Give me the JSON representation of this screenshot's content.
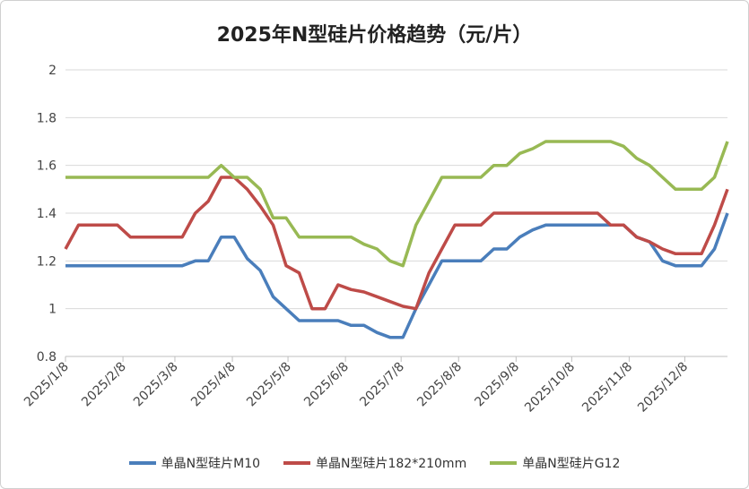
{
  "chart_data": {
    "type": "line",
    "title": "2025年N型硅片价格趋势（元/片）",
    "xlabel": "",
    "ylabel": "",
    "ylim": [
      0.8,
      2
    ],
    "yticks": [
      0.8,
      1,
      1.2,
      1.4,
      1.6,
      1.8,
      2
    ],
    "ytick_labels": [
      "0.8",
      "1",
      "1.2",
      "1.4",
      "1.6",
      "1.8",
      "2"
    ],
    "grid": true,
    "legend_position": "bottom",
    "x_start": "2025/1/8",
    "x_step_days": 7,
    "xlim_days": [
      0,
      357
    ],
    "xticks": [
      {
        "day": 0,
        "label": "2025/1/8"
      },
      {
        "day": 31,
        "label": "2025/2/8"
      },
      {
        "day": 59,
        "label": "2025/3/8"
      },
      {
        "day": 90,
        "label": "2025/4/8"
      },
      {
        "day": 120,
        "label": "2025/5/8"
      },
      {
        "day": 151,
        "label": "2025/6/8"
      },
      {
        "day": 181,
        "label": "2025/7/8"
      },
      {
        "day": 212,
        "label": "2025/8/8"
      },
      {
        "day": 243,
        "label": "2025/9/8"
      },
      {
        "day": 273,
        "label": "2025/10/8"
      },
      {
        "day": 304,
        "label": "2025/11/8"
      },
      {
        "day": 334,
        "label": "2025/12/8"
      }
    ],
    "series": [
      {
        "name": "单晶N型硅片M10",
        "color": "#4a7ebb",
        "values": [
          1.18,
          1.18,
          1.18,
          1.18,
          1.18,
          1.18,
          1.18,
          1.18,
          1.18,
          1.18,
          1.2,
          1.2,
          1.3,
          1.3,
          1.21,
          1.16,
          1.05,
          1.0,
          0.95,
          0.95,
          0.95,
          0.95,
          0.93,
          0.93,
          0.9,
          0.88,
          0.88,
          1.0,
          1.1,
          1.2,
          1.2,
          1.2,
          1.2,
          1.25,
          1.25,
          1.3,
          1.33,
          1.35,
          1.35,
          1.35,
          1.35,
          1.35,
          1.35,
          1.35,
          1.3,
          1.28,
          1.2,
          1.18,
          1.18,
          1.18,
          1.25,
          1.4
        ]
      },
      {
        "name": "单晶N型硅片182*210mm",
        "color": "#be4b48",
        "values": [
          1.25,
          1.35,
          1.35,
          1.35,
          1.35,
          1.3,
          1.3,
          1.3,
          1.3,
          1.3,
          1.4,
          1.45,
          1.55,
          1.55,
          1.5,
          1.43,
          1.35,
          1.18,
          1.15,
          1.0,
          1.0,
          1.1,
          1.08,
          1.07,
          1.05,
          1.03,
          1.01,
          1.0,
          1.15,
          1.25,
          1.35,
          1.35,
          1.35,
          1.4,
          1.4,
          1.4,
          1.4,
          1.4,
          1.4,
          1.4,
          1.4,
          1.4,
          1.35,
          1.35,
          1.3,
          1.28,
          1.25,
          1.23,
          1.23,
          1.23,
          1.35,
          1.5
        ]
      },
      {
        "name": "单晶N型硅片G12",
        "color": "#98b954",
        "values": [
          1.55,
          1.55,
          1.55,
          1.55,
          1.55,
          1.55,
          1.55,
          1.55,
          1.55,
          1.55,
          1.55,
          1.55,
          1.6,
          1.55,
          1.55,
          1.5,
          1.38,
          1.38,
          1.3,
          1.3,
          1.3,
          1.3,
          1.3,
          1.27,
          1.25,
          1.2,
          1.18,
          1.35,
          1.45,
          1.55,
          1.55,
          1.55,
          1.55,
          1.6,
          1.6,
          1.65,
          1.67,
          1.7,
          1.7,
          1.7,
          1.7,
          1.7,
          1.7,
          1.68,
          1.63,
          1.6,
          1.55,
          1.5,
          1.5,
          1.5,
          1.55,
          1.7
        ]
      }
    ]
  }
}
